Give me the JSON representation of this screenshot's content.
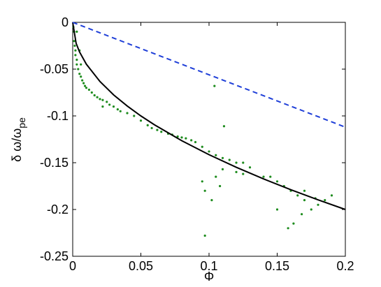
{
  "chart_data": {
    "type": "scatter",
    "xlabel": "Φ",
    "ylabel": {
      "text": "δ ω/ω",
      "subscript": "pe"
    },
    "xlim": [
      0,
      0.2
    ],
    "ylim": [
      -0.25,
      0
    ],
    "xticks": [
      0,
      0.05,
      0.1,
      0.15,
      0.2
    ],
    "yticks": [
      0,
      -0.05,
      -0.1,
      -0.15,
      -0.2,
      -0.25
    ],
    "grid": false,
    "series": [
      {
        "color": "#1e8c1e",
        "style": "markers",
        "x": [
          0.0005,
          0.001,
          0.001,
          0.0015,
          0.002,
          0.002,
          0.003,
          0.003,
          0.004,
          0.005,
          0.006,
          0.007,
          0.008,
          0.009,
          0.01,
          0.012,
          0.014,
          0.016,
          0.018,
          0.02,
          0.022,
          0.025,
          0.027,
          0.022,
          0.03,
          0.033,
          0.035,
          0.04,
          0.045,
          0.05,
          0.055,
          0.058,
          0.062,
          0.065,
          0.07,
          0.073,
          0.077,
          0.08,
          0.083,
          0.087,
          0.09,
          0.095,
          0.1,
          0.105,
          0.11,
          0.115,
          0.12,
          0.125,
          0.13,
          0.11,
          0.105,
          0.095,
          0.097,
          0.102,
          0.108,
          0.12,
          0.125,
          0.14,
          0.15,
          0.155,
          0.16,
          0.165,
          0.17,
          0.175,
          0.18,
          0.185,
          0.19,
          0.168,
          0.162,
          0.158,
          0.15,
          0.145,
          0.17,
          0.178,
          0.104,
          0.097,
          0.111,
          0.003,
          0.005,
          0.006
        ],
        "values": [
          -0.005,
          -0.01,
          -0.02,
          -0.025,
          -0.03,
          -0.035,
          -0.04,
          -0.045,
          -0.05,
          -0.055,
          -0.058,
          -0.062,
          -0.065,
          -0.068,
          -0.07,
          -0.072,
          -0.075,
          -0.078,
          -0.08,
          -0.082,
          -0.083,
          -0.085,
          -0.088,
          -0.09,
          -0.09,
          -0.093,
          -0.095,
          -0.097,
          -0.1,
          -0.105,
          -0.11,
          -0.113,
          -0.115,
          -0.117,
          -0.119,
          -0.12,
          -0.122,
          -0.123,
          -0.124,
          -0.126,
          -0.128,
          -0.133,
          -0.138,
          -0.142,
          -0.145,
          -0.147,
          -0.15,
          -0.15,
          -0.155,
          -0.157,
          -0.165,
          -0.17,
          -0.18,
          -0.19,
          -0.175,
          -0.16,
          -0.162,
          -0.165,
          -0.17,
          -0.175,
          -0.18,
          -0.185,
          -0.19,
          -0.2,
          -0.195,
          -0.19,
          -0.185,
          -0.205,
          -0.215,
          -0.22,
          -0.2,
          -0.165,
          -0.18,
          -0.188,
          -0.068,
          -0.228,
          -0.111,
          -0.01,
          -0.03,
          -0.045
        ]
      },
      {
        "color": "#000000",
        "style": "solid",
        "x": [
          0,
          0.0025,
          0.005,
          0.01,
          0.02,
          0.03,
          0.04,
          0.05,
          0.06,
          0.08,
          0.1,
          0.12,
          0.14,
          0.16,
          0.18,
          0.2
        ],
        "values": [
          0,
          -0.0224,
          -0.0316,
          -0.0447,
          -0.0632,
          -0.0775,
          -0.0894,
          -0.1,
          -0.1095,
          -0.1265,
          -0.1414,
          -0.1549,
          -0.1673,
          -0.1789,
          -0.1897,
          -0.2
        ]
      },
      {
        "color": "#1f3fd8",
        "style": "dashed",
        "x": [
          0,
          0.2
        ],
        "values": [
          0,
          -0.112
        ]
      }
    ]
  }
}
